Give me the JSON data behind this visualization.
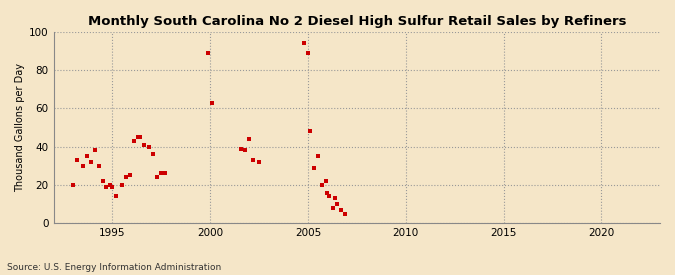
{
  "title": "Monthly South Carolina No 2 Diesel High Sulfur Retail Sales by Refiners",
  "ylabel": "Thousand Gallons per Day",
  "source": "Source: U.S. Energy Information Administration",
  "background_color": "#f5e6c8",
  "plot_bg_color": "#f5e6c8",
  "marker_color": "#cc0000",
  "xlim": [
    1992,
    2023
  ],
  "ylim": [
    0,
    100
  ],
  "xticks": [
    1995,
    2000,
    2005,
    2010,
    2015,
    2020
  ],
  "yticks": [
    0,
    20,
    40,
    60,
    80,
    100
  ],
  "scatter_x": [
    1993.0,
    1993.2,
    1993.5,
    1993.7,
    1993.9,
    1994.1,
    1994.3,
    1994.5,
    1994.7,
    1994.9,
    1995.0,
    1995.2,
    1995.5,
    1995.7,
    1995.9,
    1996.1,
    1996.3,
    1996.4,
    1996.6,
    1996.9,
    1997.1,
    1997.3,
    1997.5,
    1997.7,
    1999.9,
    2000.1,
    2001.6,
    2001.8,
    2002.0,
    2002.2,
    2002.5,
    2004.8,
    2005.0,
    2005.1,
    2005.3,
    2005.5,
    2005.7,
    2005.9,
    2006.0,
    2006.1,
    2006.3,
    2006.4,
    2006.5,
    2006.7,
    2006.9
  ],
  "scatter_y": [
    20,
    33,
    30,
    35,
    32,
    38,
    30,
    22,
    19,
    20,
    19,
    14,
    20,
    24,
    25,
    43,
    45,
    45,
    41,
    40,
    36,
    24,
    26,
    26,
    89,
    63,
    39,
    38,
    44,
    33,
    32,
    94,
    89,
    48,
    29,
    35,
    20,
    22,
    16,
    14,
    8,
    13,
    10,
    7,
    5
  ]
}
